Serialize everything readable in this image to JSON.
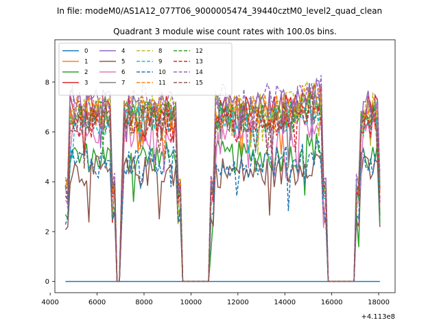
{
  "chart_data": {
    "type": "line",
    "suptitle": "In file: modeM0/AS1A12_077T06_9000005474_39440cztM0_level2_quad_clean",
    "title": "Quadrant 3 module wise count rates with 100.0s bins.",
    "xlabel": "",
    "ylabel": "",
    "x_offset_label": "+4.113e8",
    "xlim": [
      4200,
      18700
    ],
    "ylim": [
      -0.45,
      9.7
    ],
    "x_ticks": [
      4000,
      6000,
      8000,
      10000,
      12000,
      14000,
      16000,
      18000
    ],
    "x_tick_labels": [
      "4000",
      "6000",
      "8000",
      "10000",
      "12000",
      "14000",
      "16000",
      "18000"
    ],
    "y_ticks": [
      0,
      2,
      4,
      6,
      8
    ],
    "y_tick_labels": [
      "0",
      "2",
      "4",
      "6",
      "8"
    ],
    "grid": false,
    "legend_placement": "top-left",
    "legend_columns": 4,
    "segments": [
      {
        "start": 4650,
        "end": 6780
      },
      {
        "start": 6960,
        "end": 9580
      },
      {
        "start": 10830,
        "end": 15750
      },
      {
        "start": 17050,
        "end": 18100
      }
    ],
    "series": [
      {
        "name": "0",
        "color": "#1f77b4",
        "dashed": false,
        "level": 0.0
      },
      {
        "name": "1",
        "color": "#ff7f0e",
        "dashed": false,
        "level": 6.7
      },
      {
        "name": "2",
        "color": "#2ca02c",
        "dashed": false,
        "level": 5.0
      },
      {
        "name": "3",
        "color": "#d62728",
        "dashed": false,
        "level": 6.9
      },
      {
        "name": "4",
        "color": "#9467bd",
        "dashed": false,
        "level": 7.1
      },
      {
        "name": "5",
        "color": "#8c564b",
        "dashed": false,
        "level": 4.4
      },
      {
        "name": "6",
        "color": "#e377c2",
        "dashed": false,
        "level": 6.0
      },
      {
        "name": "7",
        "color": "#7f7f7f",
        "dashed": false,
        "level": 6.8
      },
      {
        "name": "8",
        "color": "#bcbd22",
        "dashed": true,
        "level": 7.0
      },
      {
        "name": "9",
        "color": "#17becf",
        "dashed": true,
        "level": 6.5
      },
      {
        "name": "10",
        "color": "#1f77b4",
        "dashed": true,
        "level": 4.8
      },
      {
        "name": "11",
        "color": "#ff7f0e",
        "dashed": true,
        "level": 6.9
      },
      {
        "name": "12",
        "color": "#2ca02c",
        "dashed": true,
        "level": 6.6
      },
      {
        "name": "13",
        "color": "#d62728",
        "dashed": true,
        "level": 6.4
      },
      {
        "name": "14",
        "color": "#9467bd",
        "dashed": true,
        "level": 7.3
      },
      {
        "name": "15",
        "color": "#8c564b",
        "dashed": true,
        "level": 6.5
      }
    ]
  }
}
